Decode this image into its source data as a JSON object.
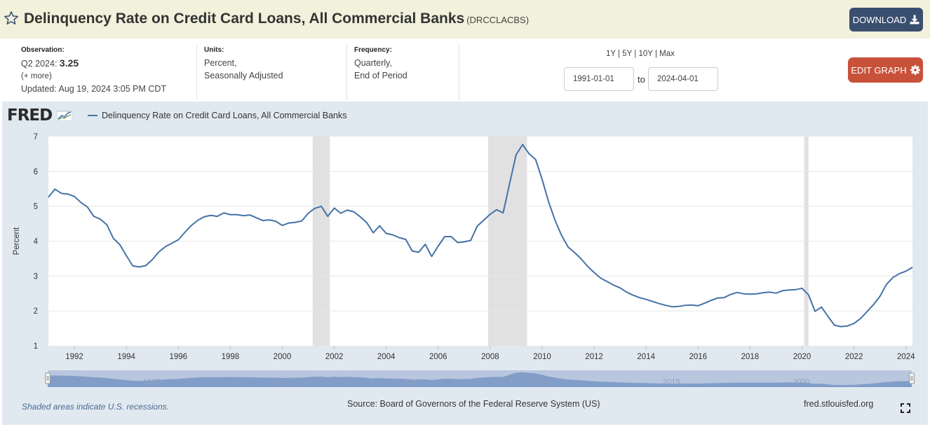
{
  "header": {
    "title": "Delinquency Rate on Credit Card Loans, All Commercial Banks",
    "series_id": "(DRCCLACBS)",
    "download_label": "DOWNLOAD"
  },
  "meta": {
    "observation_label": "Observation:",
    "observation_period": "Q2 2024:",
    "observation_value": "3.25",
    "more_label": "(+ more)",
    "updated": "Updated: Aug 19, 2024 3:05 PM CDT",
    "units_label": "Units:",
    "units_line1": "Percent,",
    "units_line2": "Seasonally Adjusted",
    "frequency_label": "Frequency:",
    "frequency_line1": "Quarterly,",
    "frequency_line2": "End of Period"
  },
  "range": {
    "links": [
      "1Y",
      "5Y",
      "10Y",
      "Max"
    ],
    "separator": " | ",
    "start": "1991-01-01",
    "end": "2024-04-01",
    "to_label": "to"
  },
  "edit_label": "EDIT GRAPH",
  "logo_text": "FRED",
  "footer": {
    "recession_note": "Shaded areas indicate U.S. recessions.",
    "source": "Source: Board of Governors of the Federal Reserve System (US)",
    "site": "fred.stlouisfed.org"
  },
  "colors": {
    "series": "#4572a7",
    "recession": "#e1e1e1",
    "panel": "#e1e9f0",
    "download": "#3a4f6f",
    "edit": "#c8513a"
  },
  "icons": {
    "star": "star-icon",
    "download": "download-icon",
    "edit": "gear-icon",
    "fullscreen": "fullscreen-icon"
  },
  "chart_data": {
    "type": "line",
    "ylabel": "Percent",
    "ylim": [
      1,
      7
    ],
    "y_ticks": [
      1,
      2,
      3,
      4,
      5,
      6,
      7
    ],
    "xlim": [
      1991.0,
      2024.25
    ],
    "x_ticks": [
      1992,
      1994,
      1996,
      1998,
      2000,
      2002,
      2004,
      2006,
      2008,
      2010,
      2012,
      2014,
      2016,
      2018,
      2020,
      2022,
      2024
    ],
    "navigator_ticks": [
      1995,
      2000,
      2005,
      2010,
      2015,
      2020
    ],
    "grid": true,
    "legend_position": "top-left",
    "recessions": [
      [
        2001.17,
        2001.83
      ],
      [
        2007.92,
        2009.42
      ],
      [
        2020.08,
        2020.25
      ]
    ],
    "series": [
      {
        "name": "Delinquency Rate on Credit Card Loans, All Commercial Banks",
        "start": 1991.0,
        "step": 0.25,
        "values": [
          5.26,
          5.49,
          5.37,
          5.35,
          5.28,
          5.11,
          4.98,
          4.71,
          4.63,
          4.47,
          4.08,
          3.9,
          3.58,
          3.29,
          3.26,
          3.3,
          3.47,
          3.69,
          3.84,
          3.94,
          4.04,
          4.25,
          4.45,
          4.6,
          4.7,
          4.74,
          4.71,
          4.81,
          4.76,
          4.76,
          4.73,
          4.75,
          4.67,
          4.59,
          4.61,
          4.57,
          4.45,
          4.52,
          4.54,
          4.58,
          4.8,
          4.94,
          5.0,
          4.71,
          4.95,
          4.8,
          4.89,
          4.84,
          4.7,
          4.53,
          4.24,
          4.44,
          4.22,
          4.18,
          4.1,
          4.05,
          3.72,
          3.68,
          3.91,
          3.56,
          3.86,
          4.13,
          4.13,
          3.96,
          3.98,
          4.02,
          4.43,
          4.6,
          4.77,
          4.9,
          4.81,
          5.66,
          6.48,
          6.77,
          6.5,
          6.34,
          5.77,
          5.12,
          4.59,
          4.16,
          3.83,
          3.67,
          3.49,
          3.28,
          3.1,
          2.94,
          2.84,
          2.74,
          2.66,
          2.54,
          2.45,
          2.38,
          2.33,
          2.27,
          2.21,
          2.16,
          2.12,
          2.13,
          2.16,
          2.17,
          2.15,
          2.22,
          2.3,
          2.37,
          2.38,
          2.47,
          2.53,
          2.49,
          2.48,
          2.49,
          2.52,
          2.54,
          2.51,
          2.58,
          2.6,
          2.61,
          2.65,
          2.46,
          1.99,
          2.11,
          1.84,
          1.59,
          1.55,
          1.57,
          1.64,
          1.78,
          1.98,
          2.18,
          2.42,
          2.76,
          2.96,
          3.07,
          3.14,
          3.25
        ]
      }
    ]
  }
}
